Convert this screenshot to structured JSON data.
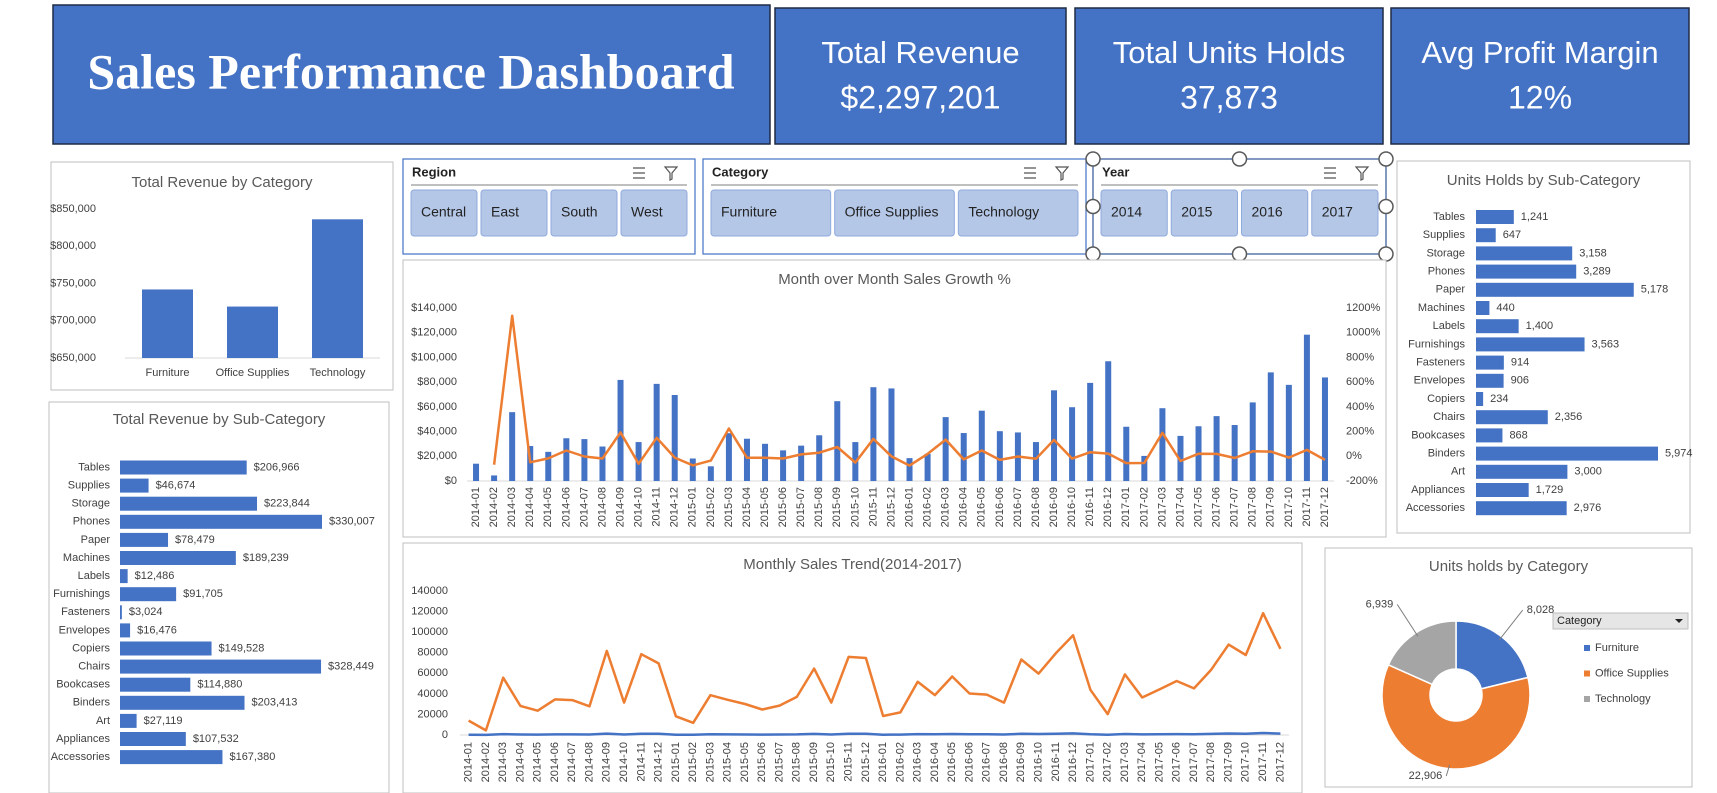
{
  "header": {
    "title": "Sales Performance Dashboard",
    "kpis": [
      {
        "label": "Total Revenue",
        "value": "$2,297,201"
      },
      {
        "label": "Total Units Holds",
        "value": "37,873"
      },
      {
        "label": "Avg Profit Margin",
        "value": "12%"
      }
    ]
  },
  "slicers": [
    {
      "title": "Region",
      "items": [
        "Central",
        "East",
        "South",
        "West"
      ]
    },
    {
      "title": "Category",
      "items": [
        "Furniture",
        "Office Supplies",
        "Technology"
      ]
    },
    {
      "title": "Year",
      "items": [
        "2014",
        "2015",
        "2016",
        "2017"
      ]
    }
  ],
  "chart_data": [
    {
      "type": "bar",
      "title": "Total Revenue by Category",
      "categories": [
        "Furniture",
        "Office Supplies",
        "Technology"
      ],
      "values": [
        742000,
        719047,
        836154
      ],
      "color": "#4472c4",
      "ylim": [
        650000,
        850000
      ],
      "yticks": [
        {
          "value": 650000,
          "label": "$650,000"
        },
        {
          "value": 700000,
          "label": "$700,000"
        },
        {
          "value": 750000,
          "label": "$750,000"
        },
        {
          "value": 800000,
          "label": "$800,000"
        },
        {
          "value": 850000,
          "label": "$850,000"
        }
      ],
      "grid": false
    },
    {
      "type": "barh",
      "title": "Total Revenue by Sub-Category",
      "categories": [
        "Tables",
        "Supplies",
        "Storage",
        "Phones",
        "Paper",
        "Machines",
        "Labels",
        "Furnishings",
        "Fasteners",
        "Envelopes",
        "Copiers",
        "Chairs",
        "Bookcases",
        "Binders",
        "Art",
        "Appliances",
        "Accessories"
      ],
      "values": [
        206966,
        46674,
        223844,
        330007,
        78479,
        189239,
        12486,
        91705,
        3024,
        16476,
        149528,
        328449,
        114880,
        203413,
        27119,
        107532,
        167380
      ],
      "value_labels": [
        "$206,966",
        "$46,674",
        "$223,844",
        "$330,007",
        "$78,479",
        "$189,239",
        "$12,486",
        "$91,705",
        "$3,024",
        "$16,476",
        "$149,528",
        "$328,449",
        "$114,880",
        "$203,413",
        "$27,119",
        "$107,532",
        "$167,380"
      ],
      "color": "#4472c4"
    },
    {
      "type": "combo",
      "title": "Month over Month Sales Growth %",
      "categories": [
        "2014-01",
        "2014-02",
        "2014-03",
        "2014-04",
        "2014-05",
        "2014-06",
        "2014-07",
        "2014-08",
        "2014-09",
        "2014-10",
        "2014-11",
        "2014-12",
        "2015-01",
        "2015-02",
        "2015-03",
        "2015-04",
        "2015-05",
        "2015-06",
        "2015-07",
        "2015-08",
        "2015-09",
        "2015-10",
        "2015-11",
        "2015-12",
        "2016-01",
        "2016-02",
        "2016-03",
        "2016-04",
        "2016-05",
        "2016-06",
        "2016-07",
        "2016-08",
        "2016-09",
        "2016-10",
        "2016-11",
        "2016-12",
        "2017-01",
        "2017-02",
        "2017-03",
        "2017-04",
        "2017-05",
        "2017-06",
        "2017-07",
        "2017-08",
        "2017-09",
        "2017-10",
        "2017-11",
        "2017-12"
      ],
      "series": [
        {
          "type": "bar",
          "color": "#4472c4",
          "values": [
            14000,
            4500,
            55700,
            28300,
            23600,
            34600,
            33900,
            27900,
            81800,
            31500,
            78600,
            69600,
            18200,
            11900,
            38700,
            34200,
            30100,
            24800,
            28600,
            37000,
            64600,
            31500,
            75900,
            74900,
            18500,
            22000,
            51700,
            38800,
            56900,
            40300,
            39300,
            31500,
            73400,
            59700,
            79400,
            96900,
            43900,
            20300,
            58900,
            36500,
            44300,
            52500,
            45300,
            63600,
            87900,
            77800,
            118400,
            83800
          ]
        },
        {
          "type": "line",
          "axis": "y2",
          "color": "#ed7d31",
          "values": [
            null,
            -68,
            1138,
            -49,
            -17,
            47,
            -2,
            -18,
            193,
            -61,
            150,
            -11,
            -74,
            -35,
            225,
            -12,
            -12,
            -18,
            15,
            29,
            75,
            -51,
            141,
            -1,
            -75,
            19,
            135,
            -25,
            47,
            -29,
            -2,
            -20,
            133,
            -19,
            33,
            22,
            -55,
            -54,
            190,
            -38,
            21,
            19,
            -14,
            40,
            38,
            -11,
            52,
            -29
          ]
        }
      ],
      "ylim": [
        0,
        140000
      ],
      "yticks": [
        {
          "value": 0,
          "label": "$0"
        },
        {
          "value": 20000,
          "label": "$20,000"
        },
        {
          "value": 40000,
          "label": "$40,000"
        },
        {
          "value": 60000,
          "label": "$60,000"
        },
        {
          "value": 80000,
          "label": "$80,000"
        },
        {
          "value": 100000,
          "label": "$100,000"
        },
        {
          "value": 120000,
          "label": "$120,000"
        },
        {
          "value": 140000,
          "label": "$140,000"
        }
      ],
      "y2lim": [
        -200,
        1200
      ],
      "y2ticks": [
        {
          "value": -200,
          "label": "-200%"
        },
        {
          "value": 0,
          "label": "0%"
        },
        {
          "value": 200,
          "label": "200%"
        },
        {
          "value": 400,
          "label": "400%"
        },
        {
          "value": 600,
          "label": "600%"
        },
        {
          "value": 800,
          "label": "800%"
        },
        {
          "value": 1000,
          "label": "1000%"
        },
        {
          "value": 1200,
          "label": "1200%"
        }
      ],
      "grid": false
    },
    {
      "type": "line",
      "title": "Monthly Sales Trend(2014-2017)",
      "categories": [
        "2014-01",
        "2014-02",
        "2014-03",
        "2014-04",
        "2014-05",
        "2014-06",
        "2014-07",
        "2014-08",
        "2014-09",
        "2014-10",
        "2014-11",
        "2014-12",
        "2015-01",
        "2015-02",
        "2015-03",
        "2015-04",
        "2015-05",
        "2015-06",
        "2015-07",
        "2015-08",
        "2015-09",
        "2015-10",
        "2015-11",
        "2015-12",
        "2016-01",
        "2016-02",
        "2016-03",
        "2016-04",
        "2016-05",
        "2016-06",
        "2016-07",
        "2016-08",
        "2016-09",
        "2016-10",
        "2016-11",
        "2016-12",
        "2017-01",
        "2017-02",
        "2017-03",
        "2017-04",
        "2017-05",
        "2017-06",
        "2017-07",
        "2017-08",
        "2017-09",
        "2017-10",
        "2017-11",
        "2017-12"
      ],
      "series": [
        {
          "color": "#4472c4",
          "values": [
            230,
            70,
            920,
            470,
            390,
            570,
            560,
            460,
            1350,
            520,
            1300,
            1150,
            300,
            200,
            640,
            560,
            500,
            410,
            470,
            610,
            1060,
            520,
            1250,
            1230,
            310,
            360,
            850,
            640,
            940,
            660,
            650,
            520,
            1210,
            980,
            1310,
            1600,
            720,
            330,
            970,
            600,
            730,
            870,
            750,
            1050,
            1450,
            1280,
            1950,
            1380
          ]
        },
        {
          "color": "#ed7d31",
          "values": [
            14000,
            4500,
            55700,
            28300,
            23600,
            34600,
            33900,
            27900,
            81800,
            31500,
            78600,
            69600,
            18200,
            11900,
            38700,
            34200,
            30100,
            24800,
            28600,
            37000,
            64600,
            31500,
            75900,
            74900,
            18500,
            22000,
            51700,
            38800,
            56900,
            40300,
            39300,
            31500,
            73400,
            59700,
            79400,
            96900,
            43900,
            20300,
            58900,
            36500,
            44300,
            52500,
            45300,
            63600,
            87900,
            77800,
            118400,
            83800
          ]
        }
      ],
      "ylim": [
        0,
        140000
      ],
      "yticks": [
        0,
        20000,
        40000,
        60000,
        80000,
        100000,
        120000,
        140000
      ],
      "grid": false
    },
    {
      "type": "barh",
      "title": "Units Holds by Sub-Category",
      "categories": [
        "Tables",
        "Supplies",
        "Storage",
        "Phones",
        "Paper",
        "Machines",
        "Labels",
        "Furnishings",
        "Fasteners",
        "Envelopes",
        "Copiers",
        "Chairs",
        "Bookcases",
        "Binders",
        "Art",
        "Appliances",
        "Accessories"
      ],
      "values": [
        1241,
        647,
        3158,
        3289,
        5178,
        440,
        1400,
        3563,
        914,
        906,
        234,
        2356,
        868,
        5974,
        3000,
        1729,
        2976
      ],
      "value_labels": [
        "1,241",
        "647",
        "3,158",
        "3,289",
        "5,178",
        "440",
        "1,400",
        "3,563",
        "914",
        "906",
        "234",
        "2,356",
        "868",
        "5,974",
        "3,000",
        "1,729",
        "2,976"
      ],
      "color": "#4472c4"
    },
    {
      "type": "donut",
      "title": "Units holds by Category",
      "categories": [
        "Furniture",
        "Office Supplies",
        "Technology"
      ],
      "values": [
        8028,
        22906,
        6939
      ],
      "value_labels": [
        "8,028",
        "22,906",
        "6,939"
      ],
      "colors": [
        "#4472c4",
        "#ed7d31",
        "#a5a5a5"
      ],
      "legend_title": "Category",
      "legend": "right"
    }
  ]
}
